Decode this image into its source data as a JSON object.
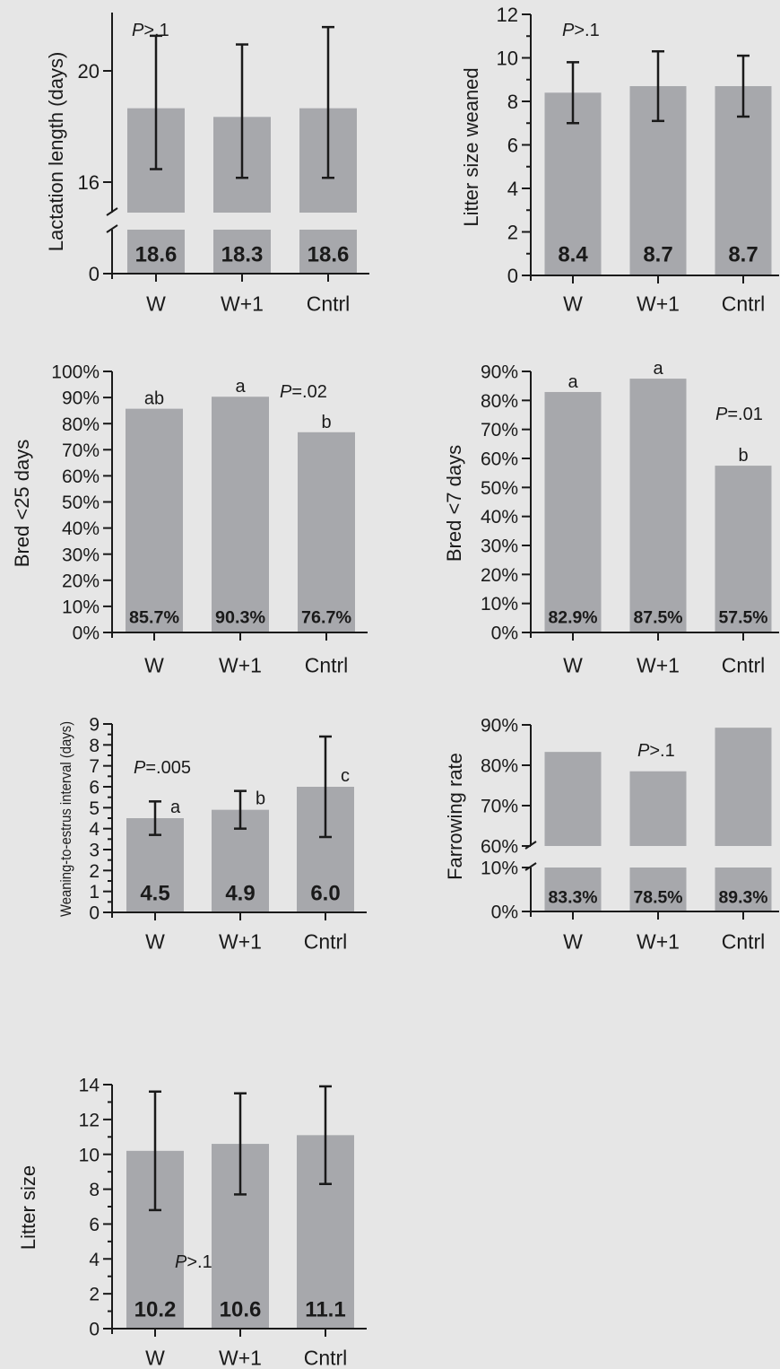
{
  "colors": {
    "background": "#e6e6e6",
    "bar": "#a7a8ac",
    "ink": "#1a1a1a"
  },
  "chart_data": [
    {
      "id": "lactation",
      "type": "bar",
      "ylabel": "Lactation length (days)",
      "categories": [
        "W",
        "W+1",
        "Cntrl"
      ],
      "values": [
        18.6,
        18.3,
        18.6
      ],
      "value_labels": [
        "18.6",
        "18.3",
        "18.6"
      ],
      "error_low": [
        16.5,
        16.2,
        16.2
      ],
      "error_high": [
        21.1,
        20.8,
        21.4
      ],
      "letters": [],
      "pvalue": "P>.1",
      "y_ticks": [
        "0",
        "16",
        "20"
      ],
      "ylim": [
        0,
        21.9
      ],
      "axis_break": {
        "lower": [
          0,
          1
        ],
        "upper": [
          15,
          21.9
        ]
      },
      "grid": false
    },
    {
      "id": "litter-weaned",
      "type": "bar",
      "ylabel": "Litter size weaned",
      "categories": [
        "W",
        "W+1",
        "Cntrl"
      ],
      "values": [
        8.4,
        8.7,
        8.7
      ],
      "value_labels": [
        "8.4",
        "8.7",
        "8.7"
      ],
      "error_low": [
        7.0,
        7.1,
        7.3
      ],
      "error_high": [
        9.8,
        10.3,
        10.1
      ],
      "letters": [],
      "pvalue": "P>.1",
      "y_ticks": [
        "0",
        "2",
        "4",
        "6",
        "8",
        "10",
        "12"
      ],
      "ylim": [
        0,
        12
      ],
      "grid": false
    },
    {
      "id": "bred25",
      "type": "bar",
      "ylabel": "Bred <25 days",
      "categories": [
        "W",
        "W+1",
        "Cntrl"
      ],
      "values": [
        85.7,
        90.3,
        76.7
      ],
      "value_labels": [
        "85.7%",
        "90.3%",
        "76.7%"
      ],
      "letters": [
        "ab",
        "a",
        "b"
      ],
      "pvalue": "P=.02",
      "y_ticks": [
        "0%",
        "10%",
        "20%",
        "30%",
        "40%",
        "50%",
        "60%",
        "70%",
        "80%",
        "90%",
        "100%"
      ],
      "ylim": [
        0,
        100
      ],
      "grid": false
    },
    {
      "id": "bred7",
      "type": "bar",
      "ylabel": "Bred <7 days",
      "categories": [
        "W",
        "W+1",
        "Cntrl"
      ],
      "values": [
        82.9,
        87.5,
        57.5
      ],
      "value_labels": [
        "82.9%",
        "87.5%",
        "57.5%"
      ],
      "letters": [
        "a",
        "a",
        "b"
      ],
      "pvalue": "P=.01",
      "y_ticks": [
        "0%",
        "10%",
        "20%",
        "30%",
        "40%",
        "50%",
        "60%",
        "70%",
        "80%",
        "90%"
      ],
      "ylim": [
        0,
        90
      ],
      "grid": false
    },
    {
      "id": "wei",
      "type": "bar",
      "ylabel": "Weaning-to-estrus interval (days)",
      "categories": [
        "W",
        "W+1",
        "Cntrl"
      ],
      "values": [
        4.5,
        4.9,
        6.0
      ],
      "value_labels": [
        "4.5",
        "4.9",
        "6.0"
      ],
      "error_low": [
        3.7,
        4.0,
        3.6
      ],
      "error_high": [
        5.3,
        5.8,
        8.4
      ],
      "letters": [
        "a",
        "b",
        "c"
      ],
      "pvalue": "P=.005",
      "y_ticks": [
        "0",
        "1",
        "2",
        "3",
        "4",
        "5",
        "6",
        "7",
        "8",
        "9"
      ],
      "ylim": [
        0,
        9
      ],
      "grid": false
    },
    {
      "id": "farrowing",
      "type": "bar",
      "ylabel": "Farrowing rate",
      "categories": [
        "W",
        "W+1",
        "Cntrl"
      ],
      "values": [
        83.3,
        78.5,
        89.3
      ],
      "value_labels": [
        "83.3%",
        "78.5%",
        "89.3%"
      ],
      "letters": [],
      "pvalue": "P>.1",
      "y_ticks": [
        "0%",
        "10%",
        "60%",
        "70%",
        "80%",
        "90%"
      ],
      "ylim": [
        0,
        90
      ],
      "axis_break": {
        "lower": [
          0,
          10
        ],
        "upper": [
          60,
          90
        ]
      },
      "grid": false
    },
    {
      "id": "litter-size",
      "type": "bar",
      "ylabel": "Litter size",
      "categories": [
        "W",
        "W+1",
        "Cntrl"
      ],
      "values": [
        10.2,
        10.6,
        11.1
      ],
      "value_labels": [
        "10.2",
        "10.6",
        "11.1"
      ],
      "error_low": [
        6.8,
        7.7,
        8.3
      ],
      "error_high": [
        13.6,
        13.5,
        13.9
      ],
      "letters": [],
      "pvalue": "P>.1",
      "y_ticks": [
        "0",
        "2",
        "4",
        "6",
        "8",
        "10",
        "12",
        "14"
      ],
      "ylim": [
        0,
        14
      ],
      "grid": false
    }
  ]
}
